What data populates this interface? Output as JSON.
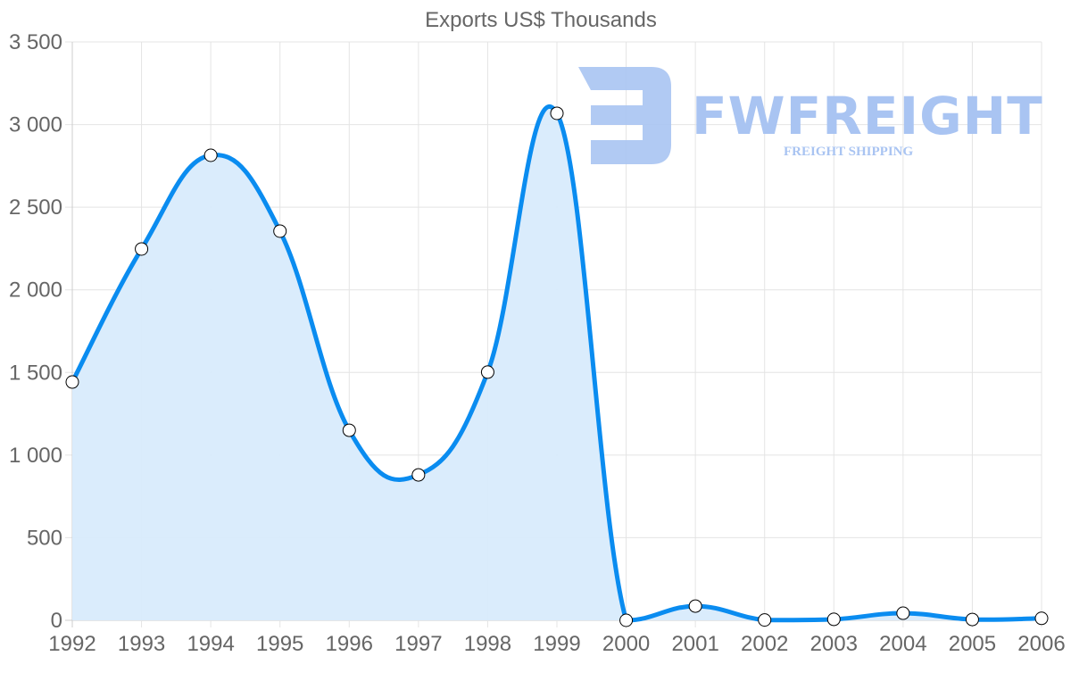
{
  "chart_data": {
    "type": "line",
    "title": "Exports US$ Thousands",
    "xlabel": "",
    "ylabel": "",
    "categories": [
      "1992",
      "1993",
      "1994",
      "1995",
      "1996",
      "1997",
      "1998",
      "1999",
      "2000",
      "2001",
      "2002",
      "2003",
      "2004",
      "2005",
      "2006"
    ],
    "series": [
      {
        "name": "Exports US$ Thousands",
        "values": [
          1442,
          2247,
          2814,
          2355,
          1150,
          880,
          1502,
          3068,
          0,
          86,
          2,
          6,
          43,
          5,
          12
        ],
        "color": "#0a8cf0",
        "fill": "#d8ebfc",
        "point_fill": "#ffffff",
        "point_stroke": "#000000"
      }
    ],
    "ylim": [
      0,
      3500
    ],
    "yticks": [
      0,
      500,
      1000,
      1500,
      2000,
      2500,
      3000,
      3500
    ],
    "ytick_labels": [
      "0",
      "500",
      "1 000",
      "1 500",
      "2 000",
      "2 500",
      "3 000",
      "3 500"
    ],
    "grid": true,
    "legend": "none",
    "fill_area": true,
    "smooth": true
  },
  "watermark": {
    "brand": "FWFREIGHT",
    "tagline": "FREIGHT SHIPPING",
    "color": "#a9c4f2"
  }
}
